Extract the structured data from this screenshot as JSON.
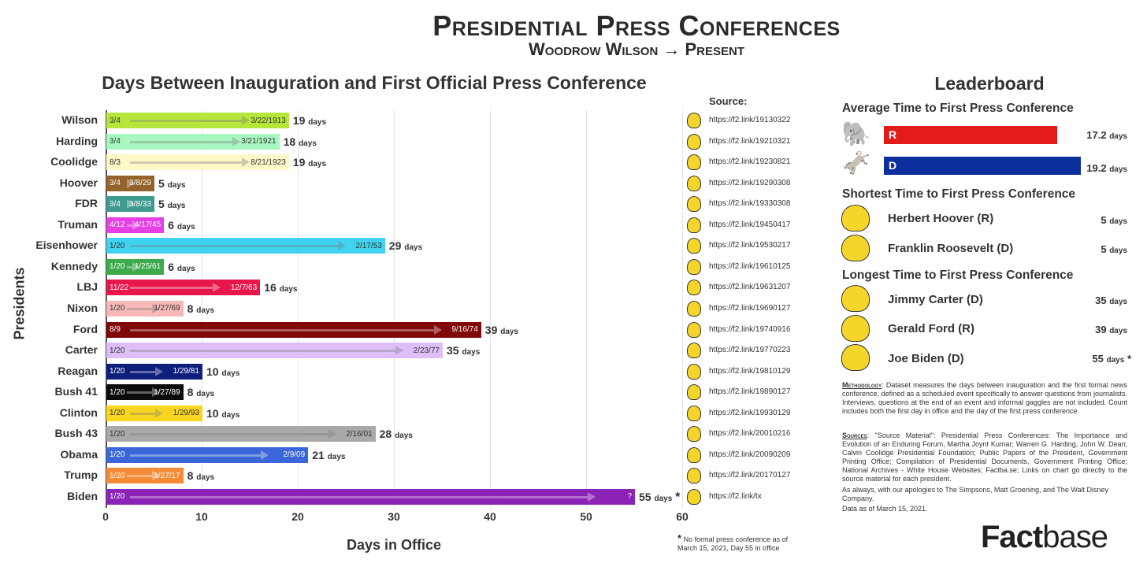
{
  "header": {
    "title": "Presidential Press Conferences",
    "subtitle": "Woodrow Wilson → Present"
  },
  "chart_data": {
    "type": "bar",
    "title": "Days Between Inauguration and First Official Press Conference",
    "xlabel": "Days in Office",
    "ylabel": "Presidents",
    "xlim": [
      0,
      60
    ],
    "xticks": [
      0,
      10,
      20,
      30,
      40,
      50,
      60
    ],
    "grid": true,
    "unit": "days",
    "rows": [
      {
        "name": "Wilson",
        "start": "3/4",
        "end": "3/22/1913",
        "days": 19,
        "color": "#b6e63b",
        "text": "#333",
        "link": "https://f2.link/19130322"
      },
      {
        "name": "Harding",
        "start": "3/4",
        "end": "3/21/1921",
        "days": 18,
        "color": "#a8f7c1",
        "text": "#333",
        "link": "https://f2.link/19210321"
      },
      {
        "name": "Coolidge",
        "start": "8/3",
        "end": "8/21/1923",
        "days": 19,
        "color": "#fdf8c8",
        "text": "#333",
        "link": "https://f2.link/19230821"
      },
      {
        "name": "Hoover",
        "start": "3/4",
        "end": "3/8/29",
        "days": 5,
        "color": "#94622b",
        "text": "#fff",
        "link": "https://f2.link/19290308"
      },
      {
        "name": "FDR",
        "start": "3/4",
        "end": "3/8/33",
        "days": 5,
        "color": "#3f9a90",
        "text": "#fff",
        "link": "https://f2.link/19330308"
      },
      {
        "name": "Truman",
        "start": "4/12",
        "end": "4/17/45",
        "days": 6,
        "color": "#e63fe6",
        "text": "#fff",
        "link": "https://f2.link/19450417"
      },
      {
        "name": "Eisenhower",
        "start": "1/20",
        "end": "2/17/53",
        "days": 29,
        "color": "#40d3f0",
        "text": "#333",
        "link": "https://f2.link/19530217"
      },
      {
        "name": "Kennedy",
        "start": "1/20",
        "end": "1/25/61",
        "days": 6,
        "color": "#3daa4b",
        "text": "#fff",
        "link": "https://f2.link/19610125"
      },
      {
        "name": "LBJ",
        "start": "11/22",
        "end": "12/7/63",
        "days": 16,
        "color": "#e8174b",
        "text": "#fff",
        "link": "https://f2.link/19631207"
      },
      {
        "name": "Nixon",
        "start": "1/20",
        "end": "1/27/69",
        "days": 8,
        "color": "#f7b8b8",
        "text": "#333",
        "link": "https://f2.link/19690127"
      },
      {
        "name": "Ford",
        "start": "8/9",
        "end": "9/16/74",
        "days": 39,
        "color": "#800808",
        "text": "#fff",
        "link": "https://f2.link/19740916"
      },
      {
        "name": "Carter",
        "start": "1/20",
        "end": "2/23/77",
        "days": 35,
        "color": "#ddbef6",
        "text": "#333",
        "link": "https://f2.link/19770223"
      },
      {
        "name": "Reagan",
        "start": "1/20",
        "end": "1/29/81",
        "days": 10,
        "color": "#0e1f7b",
        "text": "#fff",
        "link": "https://f2.link/19810129"
      },
      {
        "name": "Bush 41",
        "start": "1/20",
        "end": "1/27/89",
        "days": 8,
        "color": "#0b0b0b",
        "text": "#fff",
        "link": "https://f2.link/19890127"
      },
      {
        "name": "Clinton",
        "start": "1/20",
        "end": "1/29/93",
        "days": 10,
        "color": "#f8d620",
        "text": "#333",
        "link": "https://f2.link/19930129"
      },
      {
        "name": "Bush 43",
        "start": "1/20",
        "end": "2/16/01",
        "days": 28,
        "color": "#a9a9a9",
        "text": "#333",
        "link": "https://f2.link/20010216"
      },
      {
        "name": "Obama",
        "start": "1/20",
        "end": "2/9/09",
        "days": 21,
        "color": "#3b66d9",
        "text": "#fff",
        "link": "https://f2.link/20090209"
      },
      {
        "name": "Trump",
        "start": "1/20",
        "end": "1/27/17",
        "days": 8,
        "color": "#f68b37",
        "text": "#fff",
        "link": "https://f2.link/20170127"
      },
      {
        "name": "Biden",
        "start": "1/20",
        "end": "?",
        "days": 55,
        "color": "#8b23b6",
        "text": "#fff",
        "link": "https://f2.link/tx",
        "asterisk": "*"
      }
    ]
  },
  "sources": {
    "heading": "Source:",
    "footnote_mark": "*",
    "footnote": "No formal press conference as of March 15, 2021, Day 55 in office"
  },
  "leaderboard": {
    "title": "Leaderboard",
    "avg_heading": "Average Time to First Press Conference",
    "avg": [
      {
        "party": "R",
        "value": 17.2,
        "unit": "days",
        "color": "#e41b1b"
      },
      {
        "party": "D",
        "value": 19.2,
        "unit": "days",
        "color": "#0d2f9e"
      }
    ],
    "shortest_heading": "Shortest Time to First Press Conference",
    "shortest": [
      {
        "name": "Herbert Hoover (R)",
        "value": 5,
        "unit": "days"
      },
      {
        "name": "Franklin Roosevelt (D)",
        "value": 5,
        "unit": "days"
      }
    ],
    "longest_heading": "Longest Time to First Press Conference",
    "longest": [
      {
        "name": "Jimmy Carter (D)",
        "value": 35,
        "unit": "days"
      },
      {
        "name": "Gerald Ford (R)",
        "value": 39,
        "unit": "days"
      },
      {
        "name": "Joe Biden (D)",
        "value": 55,
        "unit": "days",
        "mark": "*"
      }
    ]
  },
  "notes": {
    "methodology_label": "Methodology",
    "methodology": ": Dataset measures the days between inauguration and the first formal news conference, defined as a scheduled event specifically to answer questions from journalists. Interviews, questions at the end of an event and informal gaggles are not included. Count includes both the first day in office and the day of the first press conference.",
    "sources_label": "Sources",
    "sources": ": \"Source Material\": Presidential Press Conferences: The Importance and Evolution of an Enduring Forum, Martha Joynt Kumar; Warren G. Harding, John W. Dean; Calvin Coolidge Presidential Foundation; Public Papers of the President, Government Printing Office; Compilation of Presidential Documents, Government Printing Office; National Archives - White House Websites; Factba.se; Links on chart go directly to the source material for each president.",
    "apologies": "As always, with our apologies to The Simpsons, Matt Groening, and The Walt Disney Company.",
    "as_of": "Data as of March 15, 2021."
  },
  "brand": {
    "logo_a": "Fact",
    "logo_b": "base"
  }
}
